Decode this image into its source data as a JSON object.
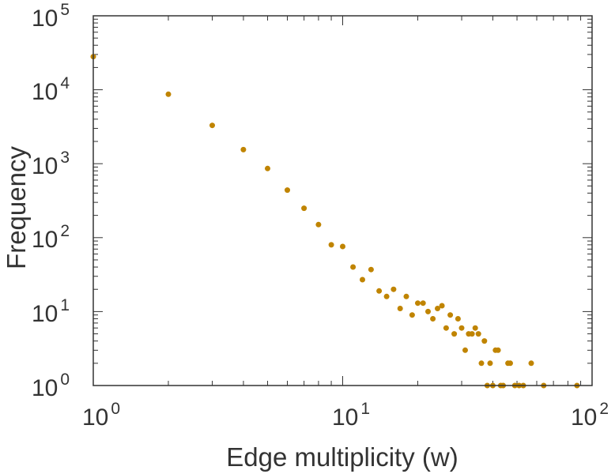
{
  "chart_data": {
    "type": "scatter",
    "title": "",
    "xlabel": "Edge multiplicity (w)",
    "ylabel": "Frequency",
    "xscale": "log",
    "yscale": "log",
    "xlim": [
      1,
      100
    ],
    "ylim": [
      1,
      100000
    ],
    "x_ticks": [
      {
        "value": 1,
        "base": "10",
        "exp": "0"
      },
      {
        "value": 10,
        "base": "10",
        "exp": "1"
      },
      {
        "value": 100,
        "base": "10",
        "exp": "2"
      }
    ],
    "y_ticks": [
      {
        "value": 1,
        "base": "10",
        "exp": "0"
      },
      {
        "value": 10,
        "base": "10",
        "exp": "1"
      },
      {
        "value": 100,
        "base": "10",
        "exp": "2"
      },
      {
        "value": 1000,
        "base": "10",
        "exp": "3"
      },
      {
        "value": 10000,
        "base": "10",
        "exp": "4"
      },
      {
        "value": 100000,
        "base": "10",
        "exp": "5"
      }
    ],
    "grid": false,
    "marker_color": "#c08400",
    "points": [
      [
        1,
        28000
      ],
      [
        2,
        8700
      ],
      [
        3,
        3300
      ],
      [
        4,
        1550
      ],
      [
        5,
        860
      ],
      [
        6,
        440
      ],
      [
        7,
        250
      ],
      [
        8,
        150
      ],
      [
        9,
        80
      ],
      [
        10,
        76
      ],
      [
        11,
        40
      ],
      [
        12,
        27
      ],
      [
        13,
        37
      ],
      [
        14,
        19
      ],
      [
        15,
        16
      ],
      [
        16,
        20
      ],
      [
        17,
        11
      ],
      [
        18,
        16
      ],
      [
        19,
        9
      ],
      [
        20,
        13
      ],
      [
        21,
        13
      ],
      [
        22,
        10
      ],
      [
        23,
        8
      ],
      [
        24,
        11
      ],
      [
        25,
        12
      ],
      [
        26,
        6
      ],
      [
        27,
        9
      ],
      [
        28,
        5
      ],
      [
        29,
        8
      ],
      [
        30,
        6
      ],
      [
        31,
        3
      ],
      [
        32,
        5
      ],
      [
        33,
        5
      ],
      [
        34,
        6
      ],
      [
        35,
        5
      ],
      [
        36,
        2
      ],
      [
        37,
        4
      ],
      [
        38,
        1
      ],
      [
        39,
        2
      ],
      [
        40,
        1
      ],
      [
        41,
        3
      ],
      [
        42,
        3
      ],
      [
        43,
        1
      ],
      [
        44,
        1
      ],
      [
        46,
        2
      ],
      [
        47,
        2
      ],
      [
        49,
        1
      ],
      [
        51,
        1
      ],
      [
        53,
        1
      ],
      [
        57,
        2
      ],
      [
        64,
        1
      ],
      [
        87,
        1
      ]
    ]
  }
}
